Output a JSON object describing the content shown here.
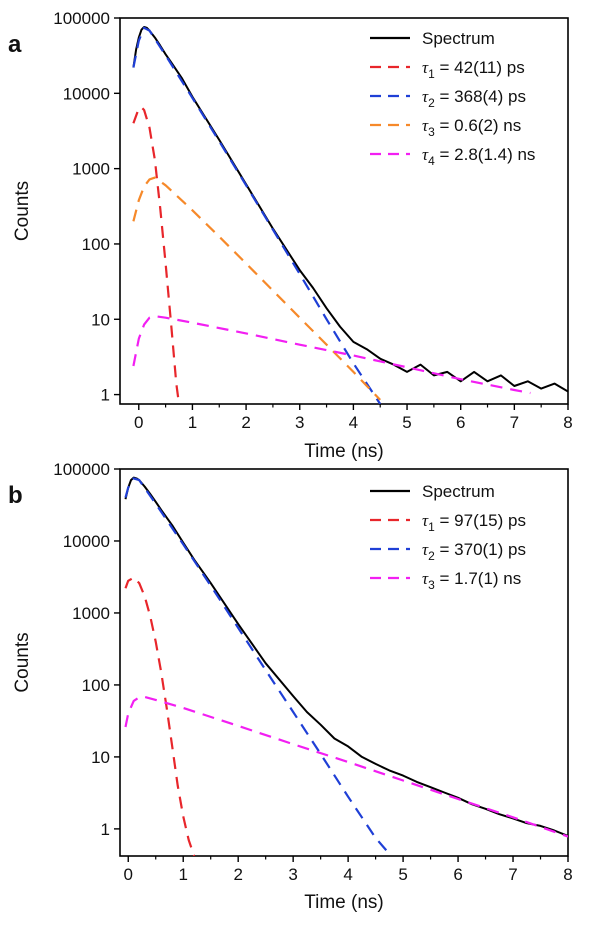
{
  "chart_data": [
    {
      "panel": "a",
      "type": "line",
      "xlabel": "Time (ns)",
      "ylabel": "Counts",
      "xlim": [
        -0.35,
        8.0
      ],
      "ylim": [
        0.75,
        100000
      ],
      "yscale": "log",
      "xticks": [
        "0",
        "1",
        "2",
        "3",
        "4",
        "5",
        "6",
        "7",
        "8"
      ],
      "yticks": [
        "1",
        "10",
        "100",
        "1000",
        "10000",
        "100000"
      ],
      "legend_position": "top-right",
      "series": [
        {
          "legend": {
            "text": "Spectrum"
          },
          "color": "#000000",
          "style": "solid",
          "x": [
            -0.1,
            -0.05,
            0.0,
            0.05,
            0.1,
            0.15,
            0.2,
            0.3,
            0.4,
            0.5,
            0.6,
            0.8,
            1.0,
            1.2,
            1.5,
            2.0,
            2.5,
            3.0,
            3.25,
            3.5,
            3.75,
            4.0,
            4.25,
            4.5,
            4.75,
            5.0,
            5.25,
            5.5,
            5.75,
            6.0,
            6.25,
            6.5,
            6.75,
            7.0,
            7.25,
            7.5,
            7.75,
            8.0
          ],
          "y": [
            22000,
            38000,
            55000,
            70000,
            76000,
            74000,
            68000,
            55000,
            43000,
            33000,
            26000,
            16000,
            9000,
            5300,
            2400,
            620,
            160,
            45,
            26,
            14,
            8,
            5,
            4,
            3,
            2.5,
            2,
            2.5,
            1.8,
            2,
            1.5,
            2,
            1.5,
            1.8,
            1.3,
            1.5,
            1.2,
            1.4,
            1.1
          ]
        },
        {
          "legend": {
            "sym": "τ",
            "sub": "1",
            "rest": " = 42(11) ps"
          },
          "color": "#e8262b",
          "style": "dashed",
          "x": [
            -0.1,
            0.0,
            0.05,
            0.1,
            0.2,
            0.3,
            0.4,
            0.5,
            0.6,
            0.7,
            0.75
          ],
          "y": [
            4000,
            6300,
            6500,
            6000,
            3500,
            1300,
            300,
            55,
            9,
            1.4,
            0.75
          ]
        },
        {
          "legend": {
            "sym": "τ",
            "sub": "2",
            "rest": " = 368(4) ps"
          },
          "color": "#1f3fd6",
          "style": "dashed",
          "x": [
            -0.1,
            0.0,
            0.1,
            0.2,
            0.5,
            1.0,
            1.5,
            2.0,
            2.5,
            3.0,
            3.5,
            4.0,
            4.5
          ],
          "y": [
            22000,
            50000,
            74000,
            68000,
            32000,
            8700,
            2300,
            600,
            155,
            40,
            10,
            2.6,
            0.7
          ]
        },
        {
          "legend": {
            "sym": "τ",
            "sub": "3",
            "rest": " = 0.6(2) ns"
          },
          "color": "#f6892a",
          "style": "dashed",
          "x": [
            -0.1,
            0.0,
            0.1,
            0.2,
            0.3,
            0.5,
            1.0,
            1.5,
            2.0,
            2.5,
            3.0,
            3.5,
            4.0,
            4.5
          ],
          "y": [
            200,
            380,
            580,
            720,
            760,
            600,
            280,
            125,
            55,
            24,
            10.5,
            4.6,
            2,
            0.85
          ]
        },
        {
          "legend": {
            "sym": "τ",
            "sub": "4",
            "rest": " = 2.8(1.4) ns"
          },
          "color": "#f21ff2",
          "style": "dashed",
          "x": [
            -0.1,
            0.0,
            0.1,
            0.2,
            0.3,
            0.5,
            1.0,
            2.0,
            3.0,
            4.0,
            5.0,
            6.0,
            7.0,
            7.3
          ],
          "y": [
            2.4,
            5.5,
            8.5,
            10.5,
            11,
            10.5,
            9,
            6.5,
            4.6,
            3.3,
            2.3,
            1.6,
            1.15,
            1.05
          ]
        }
      ]
    },
    {
      "panel": "b",
      "type": "line",
      "xlabel": "Time (ns)",
      "ylabel": "Counts",
      "xlim": [
        -0.15,
        8.0
      ],
      "ylim": [
        0.42,
        100000
      ],
      "yscale": "log",
      "xticks": [
        "0",
        "1",
        "2",
        "3",
        "4",
        "5",
        "6",
        "7",
        "8"
      ],
      "yticks": [
        "1",
        "10",
        "100",
        "1000",
        "10000",
        "100000"
      ],
      "legend_position": "top-right",
      "series": [
        {
          "legend": {
            "text": "Spectrum"
          },
          "color": "#000000",
          "style": "solid",
          "x": [
            -0.05,
            0.0,
            0.05,
            0.1,
            0.15,
            0.2,
            0.3,
            0.4,
            0.5,
            0.6,
            0.8,
            1.0,
            1.2,
            1.5,
            2.0,
            2.5,
            3.0,
            3.25,
            3.5,
            3.75,
            4.0,
            4.25,
            4.5,
            4.75,
            5.0,
            5.25,
            5.5,
            5.75,
            6.0,
            6.25,
            6.5,
            6.75,
            7.0,
            7.25,
            7.5,
            7.75,
            8.0
          ],
          "y": [
            38000,
            55000,
            70000,
            76000,
            74000,
            70000,
            57000,
            45000,
            35000,
            27000,
            16500,
            9500,
            5500,
            2600,
            700,
            200,
            70,
            42,
            28,
            18,
            14,
            10,
            8,
            6.5,
            5.5,
            4.5,
            3.8,
            3.2,
            2.7,
            2.2,
            1.9,
            1.6,
            1.4,
            1.2,
            1.1,
            0.95,
            0.8
          ]
        },
        {
          "legend": {
            "sym": "τ",
            "sub": "1",
            "rest": " = 97(15) ps"
          },
          "color": "#e8262b",
          "style": "dashed",
          "x": [
            -0.05,
            0.0,
            0.1,
            0.2,
            0.3,
            0.4,
            0.5,
            0.6,
            0.7,
            0.8,
            0.9,
            1.0,
            1.1,
            1.2
          ],
          "y": [
            2200,
            2800,
            3100,
            2600,
            1700,
            900,
            400,
            150,
            48,
            14,
            4,
            1.5,
            0.7,
            0.42
          ]
        },
        {
          "legend": {
            "sym": "τ",
            "sub": "2",
            "rest": " = 370(1) ps"
          },
          "color": "#1f3fd6",
          "style": "dashed",
          "x": [
            -0.05,
            0.0,
            0.1,
            0.2,
            0.5,
            1.0,
            1.5,
            2.0,
            2.5,
            3.0,
            3.5,
            4.0,
            4.5,
            4.75
          ],
          "y": [
            40000,
            55000,
            74000,
            70000,
            33000,
            9000,
            2400,
            620,
            160,
            42,
            11,
            2.8,
            0.75,
            0.45
          ]
        },
        {
          "legend": {
            "sym": "τ",
            "sub": "3",
            "rest": " = 1.7(1) ns"
          },
          "color": "#f21ff2",
          "style": "dashed",
          "x": [
            -0.05,
            0.0,
            0.1,
            0.2,
            0.3,
            0.5,
            1.0,
            2.0,
            3.0,
            4.0,
            5.0,
            6.0,
            7.0,
            8.0
          ],
          "y": [
            26,
            40,
            60,
            67,
            68,
            62,
            48,
            27,
            15,
            8.5,
            4.7,
            2.6,
            1.45,
            0.78
          ]
        }
      ]
    }
  ]
}
